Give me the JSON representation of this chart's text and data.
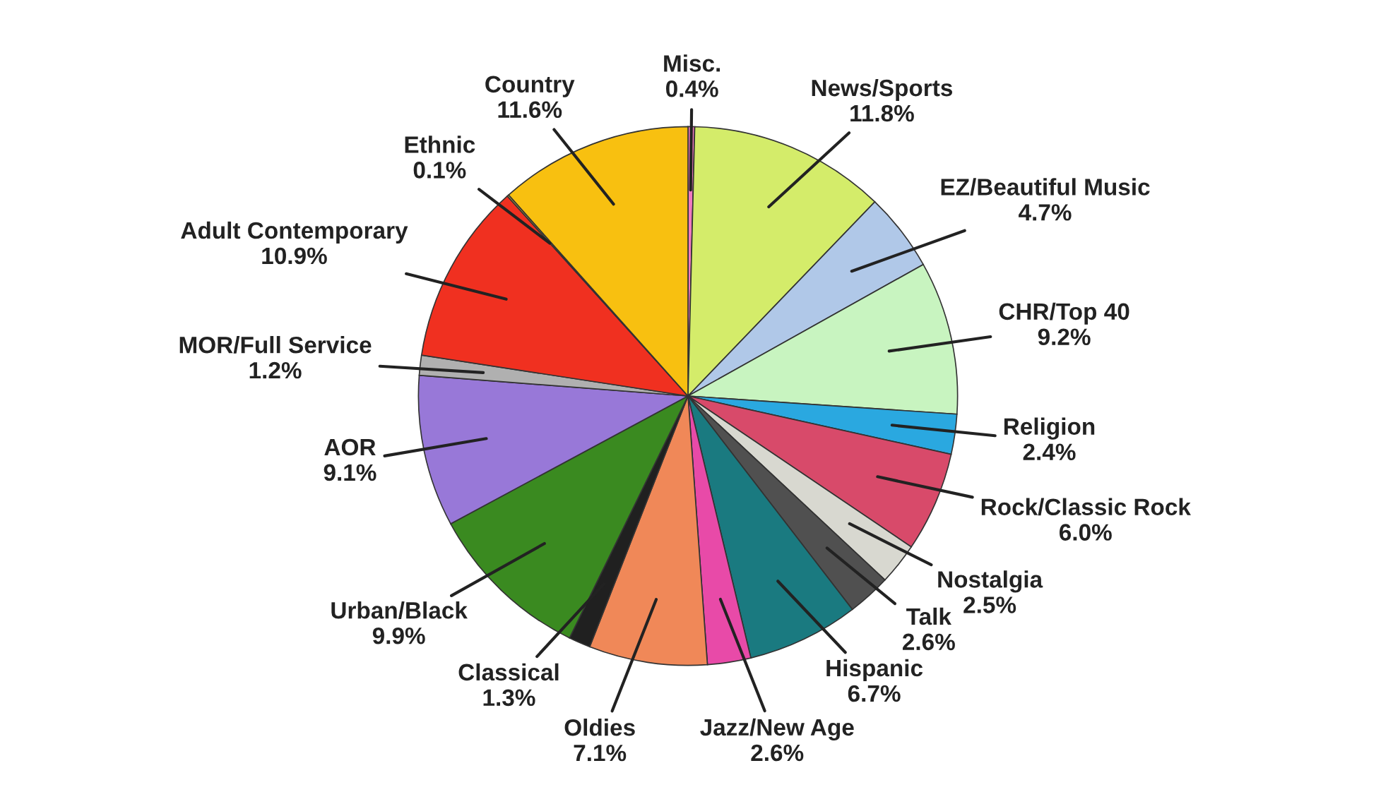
{
  "chart_data": {
    "type": "pie",
    "categories": [
      "Misc.",
      "News/Sports",
      "EZ/Beautiful Music",
      "CHR/Top 40",
      "Religion",
      "Rock/Classic Rock",
      "Nostalgia",
      "Talk",
      "Hispanic",
      "Jazz/New Age",
      "Oldies",
      "Classical",
      "Urban/Black",
      "AOR",
      "MOR/Full Service",
      "Adult Contemporary",
      "Ethnic",
      "Country"
    ],
    "values": [
      0.4,
      11.8,
      4.7,
      9.2,
      2.4,
      6.0,
      2.5,
      2.6,
      6.7,
      2.6,
      7.1,
      1.3,
      9.9,
      9.1,
      1.2,
      10.9,
      0.1,
      11.6
    ],
    "value_labels": [
      "0.4%",
      "11.8%",
      "4.7%",
      "9.2%",
      "2.4%",
      "6.0%",
      "2.5%",
      "2.6%",
      "6.7%",
      "2.6%",
      "7.1%",
      "1.3%",
      "9.9%",
      "9.1%",
      "1.2%",
      "10.9%",
      "0.1%",
      "11.6%"
    ],
    "colors": [
      "#f07ac0",
      "#d4ec6a",
      "#b0c8e8",
      "#c8f4c0",
      "#2aa8e0",
      "#d84a6a",
      "#d8d8d0",
      "#505050",
      "#1a7a80",
      "#e84aa8",
      "#f08858",
      "#202020",
      "#3a8a20",
      "#9878d8",
      "#b0b0b0",
      "#f03020",
      "#e0c040",
      "#f8c010"
    ]
  }
}
